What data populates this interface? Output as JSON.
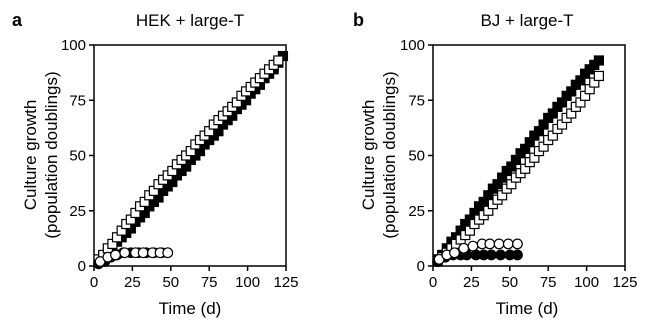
{
  "chart_data": [
    {
      "panel_label": "a",
      "title": "HEK + large-T",
      "type": "scatter",
      "xlabel": "Time (d)",
      "ylabel": [
        "Culture growth",
        "(population doublings)"
      ],
      "xlim": [
        0,
        125
      ],
      "ylim": [
        0,
        100
      ],
      "xticks": [
        0,
        25,
        50,
        75,
        100,
        125
      ],
      "yticks": [
        0,
        25,
        50,
        75,
        100
      ],
      "series": [
        {
          "marker": "square",
          "fill": "#000000",
          "x": [
            3,
            6,
            9,
            12,
            15,
            18,
            21,
            24,
            27,
            30,
            33,
            36,
            39,
            42,
            45,
            48,
            51,
            54,
            57,
            60,
            63,
            66,
            69,
            72,
            75,
            78,
            81,
            84,
            87,
            90,
            93,
            96,
            99,
            102,
            105,
            108,
            111,
            114,
            117,
            120,
            123
          ],
          "y": [
            2,
            4,
            6,
            8,
            11,
            13,
            15,
            17,
            20,
            22,
            24,
            27,
            29,
            31,
            34,
            36,
            38,
            41,
            43,
            45,
            48,
            50,
            52,
            55,
            57,
            59,
            61,
            64,
            66,
            68,
            71,
            73,
            75,
            78,
            80,
            82,
            85,
            87,
            89,
            92,
            95
          ]
        },
        {
          "marker": "square",
          "fill": "#ffffff",
          "x": [
            3,
            6,
            9,
            12,
            15,
            18,
            21,
            24,
            27,
            30,
            33,
            36,
            39,
            42,
            45,
            48,
            51,
            54,
            57,
            60,
            63,
            66,
            69,
            72,
            75,
            78,
            81,
            84,
            87,
            90,
            93,
            96,
            99,
            102,
            105,
            108,
            111,
            114,
            117,
            120
          ],
          "y": [
            3,
            5,
            8,
            10,
            13,
            16,
            19,
            21,
            24,
            27,
            29,
            32,
            34,
            37,
            39,
            41,
            43,
            46,
            48,
            50,
            52,
            55,
            57,
            59,
            61,
            64,
            66,
            68,
            70,
            72,
            74,
            77,
            79,
            81,
            83,
            85,
            87,
            89,
            91,
            93
          ]
        },
        {
          "marker": "circle",
          "fill": "#000000",
          "x": [
            3,
            7,
            11,
            15,
            19,
            24,
            29,
            34,
            39,
            44,
            48
          ],
          "y": [
            1,
            2,
            4,
            5,
            6,
            6,
            6,
            6,
            6,
            6,
            6
          ]
        },
        {
          "marker": "circle",
          "fill": "#ffffff",
          "x": [
            4,
            9,
            14,
            20,
            27,
            32,
            38,
            43,
            48
          ],
          "y": [
            2,
            4,
            5,
            6,
            6,
            6,
            6,
            6,
            6
          ]
        }
      ]
    },
    {
      "panel_label": "b",
      "title": "BJ + large-T",
      "type": "scatter",
      "xlabel": "Time (d)",
      "ylabel": [
        "Culture growth",
        "(population doublings)"
      ],
      "xlim": [
        0,
        125
      ],
      "ylim": [
        0,
        100
      ],
      "xticks": [
        0,
        25,
        50,
        75,
        100,
        125
      ],
      "yticks": [
        0,
        25,
        50,
        75,
        100
      ],
      "series": [
        {
          "marker": "square",
          "fill": "#000000",
          "x": [
            3,
            6,
            9,
            12,
            15,
            18,
            21,
            24,
            27,
            30,
            33,
            36,
            39,
            42,
            45,
            48,
            51,
            54,
            57,
            60,
            63,
            66,
            69,
            72,
            75,
            78,
            81,
            84,
            87,
            90,
            93,
            96,
            99,
            102,
            105,
            108
          ],
          "y": [
            3,
            5,
            8,
            11,
            13,
            16,
            19,
            21,
            24,
            27,
            29,
            32,
            35,
            37,
            40,
            43,
            45,
            48,
            51,
            53,
            56,
            59,
            61,
            64,
            67,
            69,
            72,
            74,
            77,
            79,
            82,
            84,
            87,
            89,
            91,
            93
          ]
        },
        {
          "marker": "square",
          "fill": "#ffffff",
          "x": [
            3,
            6,
            9,
            12,
            15,
            18,
            21,
            24,
            27,
            30,
            33,
            36,
            39,
            42,
            45,
            48,
            51,
            54,
            57,
            60,
            63,
            66,
            69,
            72,
            75,
            78,
            81,
            84,
            87,
            90,
            93,
            96,
            99,
            102,
            105,
            108
          ],
          "y": [
            2,
            4,
            6,
            8,
            10,
            12,
            14,
            16,
            19,
            21,
            23,
            25,
            28,
            30,
            32,
            35,
            37,
            40,
            42,
            44,
            47,
            49,
            52,
            54,
            57,
            59,
            62,
            64,
            67,
            69,
            72,
            74,
            77,
            80,
            83,
            86
          ]
        },
        {
          "marker": "circle",
          "fill": "#000000",
          "x": [
            3,
            8,
            13,
            18,
            22,
            28,
            33,
            38,
            44,
            50,
            55
          ],
          "y": [
            2,
            4,
            5,
            5,
            5,
            5,
            5,
            5,
            5,
            5,
            5
          ]
        },
        {
          "marker": "circle",
          "fill": "#ffffff",
          "x": [
            4,
            9,
            14,
            20,
            26,
            32,
            37,
            43,
            49,
            55
          ],
          "y": [
            3,
            5,
            6,
            8,
            9,
            10,
            10,
            10,
            10,
            10
          ]
        }
      ]
    }
  ]
}
